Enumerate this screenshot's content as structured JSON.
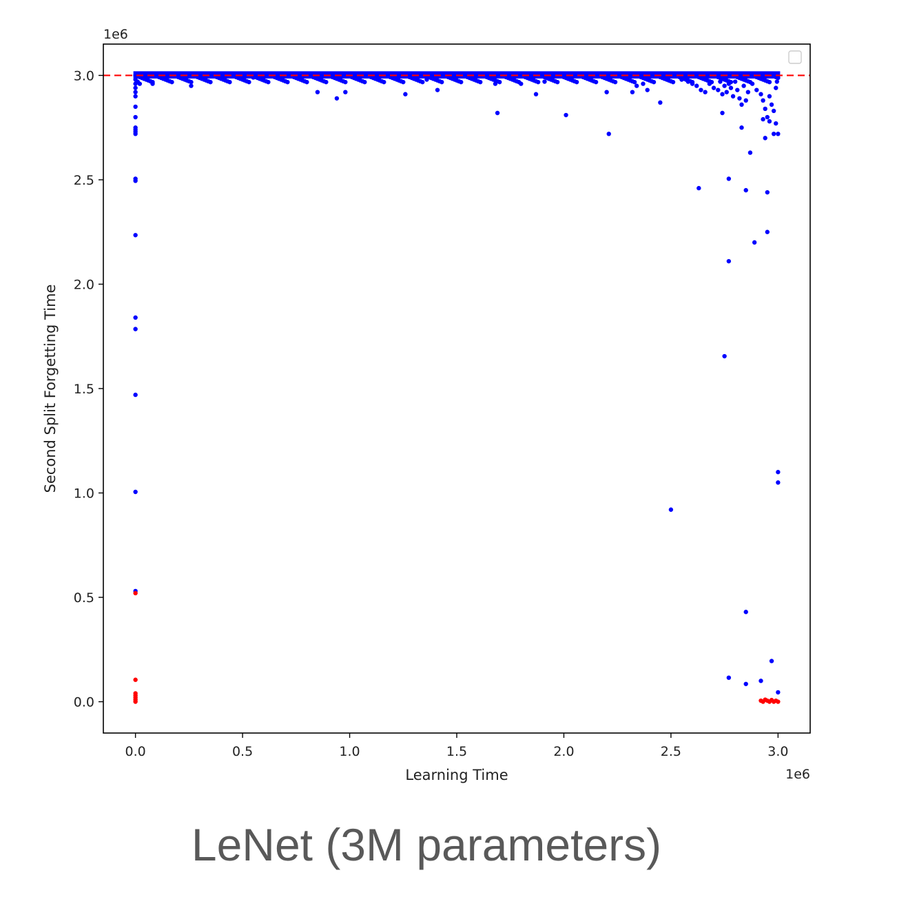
{
  "caption": "LeNet (3M parameters)",
  "chart_data": {
    "type": "scatter",
    "xlabel": "Learning Time",
    "ylabel": "Second Split Forgetting Time",
    "x_offset_label": "1e6",
    "y_offset_label": "1e6",
    "xlim": [
      -0.15,
      3.15
    ],
    "ylim": [
      -0.15,
      3.15
    ],
    "x_ticks": [
      {
        "value": 0.0,
        "label": "0.0"
      },
      {
        "value": 0.5,
        "label": "0.5"
      },
      {
        "value": 1.0,
        "label": "1.0"
      },
      {
        "value": 1.5,
        "label": "1.5"
      },
      {
        "value": 2.0,
        "label": "2.0"
      },
      {
        "value": 2.5,
        "label": "2.5"
      },
      {
        "value": 3.0,
        "label": "3.0"
      }
    ],
    "y_ticks": [
      {
        "value": 0.0,
        "label": "0.0"
      },
      {
        "value": 0.5,
        "label": "0.5"
      },
      {
        "value": 1.0,
        "label": "1.0"
      },
      {
        "value": 1.5,
        "label": "1.5"
      },
      {
        "value": 2.0,
        "label": "2.0"
      },
      {
        "value": 2.5,
        "label": "2.5"
      },
      {
        "value": 3.0,
        "label": "3.0"
      }
    ],
    "reference_line": {
      "y": 3.0,
      "color": "#ff0000",
      "style": "dashed"
    },
    "legend": {
      "placement": "top-right",
      "entries": []
    },
    "grid": false,
    "series": [
      {
        "color": "#0000ff",
        "points": [
          [
            0.0,
            3.0
          ],
          [
            0.0,
            2.98
          ],
          [
            0.0,
            2.96
          ],
          [
            0.0,
            2.94
          ],
          [
            0.0,
            2.92
          ],
          [
            0.0,
            2.9
          ],
          [
            0.0,
            2.85
          ],
          [
            0.0,
            2.8
          ],
          [
            0.0,
            2.75
          ],
          [
            0.0,
            2.74
          ],
          [
            0.0,
            2.73
          ],
          [
            0.0,
            2.72
          ],
          [
            0.0,
            2.505
          ],
          [
            0.0,
            2.495
          ],
          [
            0.0,
            2.235
          ],
          [
            0.0,
            1.84
          ],
          [
            0.0,
            1.785
          ],
          [
            0.0,
            1.47
          ],
          [
            0.0,
            1.005
          ],
          [
            0.0,
            0.53
          ],
          [
            0.01,
            3.0
          ],
          [
            0.02,
            3.0
          ],
          [
            0.03,
            3.0
          ],
          [
            0.04,
            3.0
          ],
          [
            0.05,
            3.0
          ],
          [
            0.01,
            2.97
          ],
          [
            0.02,
            2.96
          ],
          [
            0.03,
            2.99
          ],
          [
            0.08,
            2.96
          ],
          [
            0.26,
            2.95
          ],
          [
            0.55,
            2.99
          ],
          [
            0.85,
            2.92
          ],
          [
            0.94,
            2.89
          ],
          [
            0.98,
            2.92
          ],
          [
            1.26,
            2.91
          ],
          [
            1.36,
            2.98
          ],
          [
            1.41,
            2.93
          ],
          [
            1.68,
            2.96
          ],
          [
            1.69,
            2.82
          ],
          [
            1.8,
            2.96
          ],
          [
            1.87,
            2.91
          ],
          [
            1.91,
            2.97
          ],
          [
            2.01,
            2.81
          ],
          [
            2.2,
            2.92
          ],
          [
            2.21,
            2.72
          ],
          [
            2.32,
            2.92
          ],
          [
            2.34,
            2.95
          ],
          [
            2.37,
            2.96
          ],
          [
            2.39,
            2.93
          ],
          [
            2.45,
            2.87
          ],
          [
            2.55,
            2.98
          ],
          [
            2.58,
            2.97
          ],
          [
            2.6,
            2.96
          ],
          [
            2.62,
            2.95
          ],
          [
            2.64,
            2.93
          ],
          [
            2.66,
            2.92
          ],
          [
            2.68,
            2.96
          ],
          [
            2.7,
            2.94
          ],
          [
            2.72,
            2.93
          ],
          [
            2.73,
            2.97
          ],
          [
            2.74,
            2.91
          ],
          [
            2.75,
            2.95
          ],
          [
            2.76,
            2.92
          ],
          [
            2.77,
            2.96
          ],
          [
            2.78,
            2.94
          ],
          [
            2.79,
            2.9
          ],
          [
            2.8,
            2.97
          ],
          [
            2.81,
            2.93
          ],
          [
            2.82,
            2.89
          ],
          [
            2.83,
            2.86
          ],
          [
            2.84,
            2.95
          ],
          [
            2.85,
            2.88
          ],
          [
            2.86,
            2.92
          ],
          [
            2.88,
            2.96
          ],
          [
            2.9,
            2.93
          ],
          [
            2.92,
            2.91
          ],
          [
            2.93,
            2.88
          ],
          [
            2.94,
            2.84
          ],
          [
            2.95,
            2.8
          ],
          [
            2.96,
            2.9
          ],
          [
            2.97,
            2.86
          ],
          [
            2.98,
            2.83
          ],
          [
            2.99,
            2.94
          ],
          [
            2.995,
            2.97
          ],
          [
            2.74,
            2.82
          ],
          [
            2.83,
            2.75
          ],
          [
            2.87,
            2.63
          ],
          [
            2.93,
            2.79
          ],
          [
            2.94,
            2.7
          ],
          [
            2.96,
            2.78
          ],
          [
            2.99,
            2.77
          ],
          [
            2.98,
            2.72
          ],
          [
            3.0,
            2.72
          ],
          [
            2.63,
            2.46
          ],
          [
            2.77,
            2.505
          ],
          [
            2.85,
            2.45
          ],
          [
            2.95,
            2.44
          ],
          [
            2.95,
            2.25
          ],
          [
            2.89,
            2.2
          ],
          [
            2.77,
            2.11
          ],
          [
            2.75,
            1.655
          ],
          [
            3.0,
            1.1
          ],
          [
            3.0,
            1.05
          ],
          [
            2.5,
            0.92
          ],
          [
            2.85,
            0.43
          ],
          [
            2.97,
            0.195
          ],
          [
            2.77,
            0.115
          ],
          [
            2.92,
            0.1
          ],
          [
            2.85,
            0.085
          ],
          [
            3.0,
            0.045
          ]
        ]
      },
      {
        "color": "#ff0000",
        "points": [
          [
            0.0,
            0.52
          ],
          [
            0.0,
            0.105
          ],
          [
            0.0,
            0.04
          ],
          [
            0.0,
            0.03
          ],
          [
            0.0,
            0.02
          ],
          [
            0.0,
            0.01
          ],
          [
            0.0,
            0.0
          ],
          [
            2.92,
            0.005
          ],
          [
            2.93,
            0.0
          ],
          [
            2.94,
            0.01
          ],
          [
            2.95,
            0.005
          ],
          [
            2.96,
            0.0
          ],
          [
            2.97,
            0.008
          ],
          [
            2.98,
            0.0
          ],
          [
            2.99,
            0.005
          ],
          [
            3.0,
            0.0
          ]
        ]
      }
    ]
  }
}
